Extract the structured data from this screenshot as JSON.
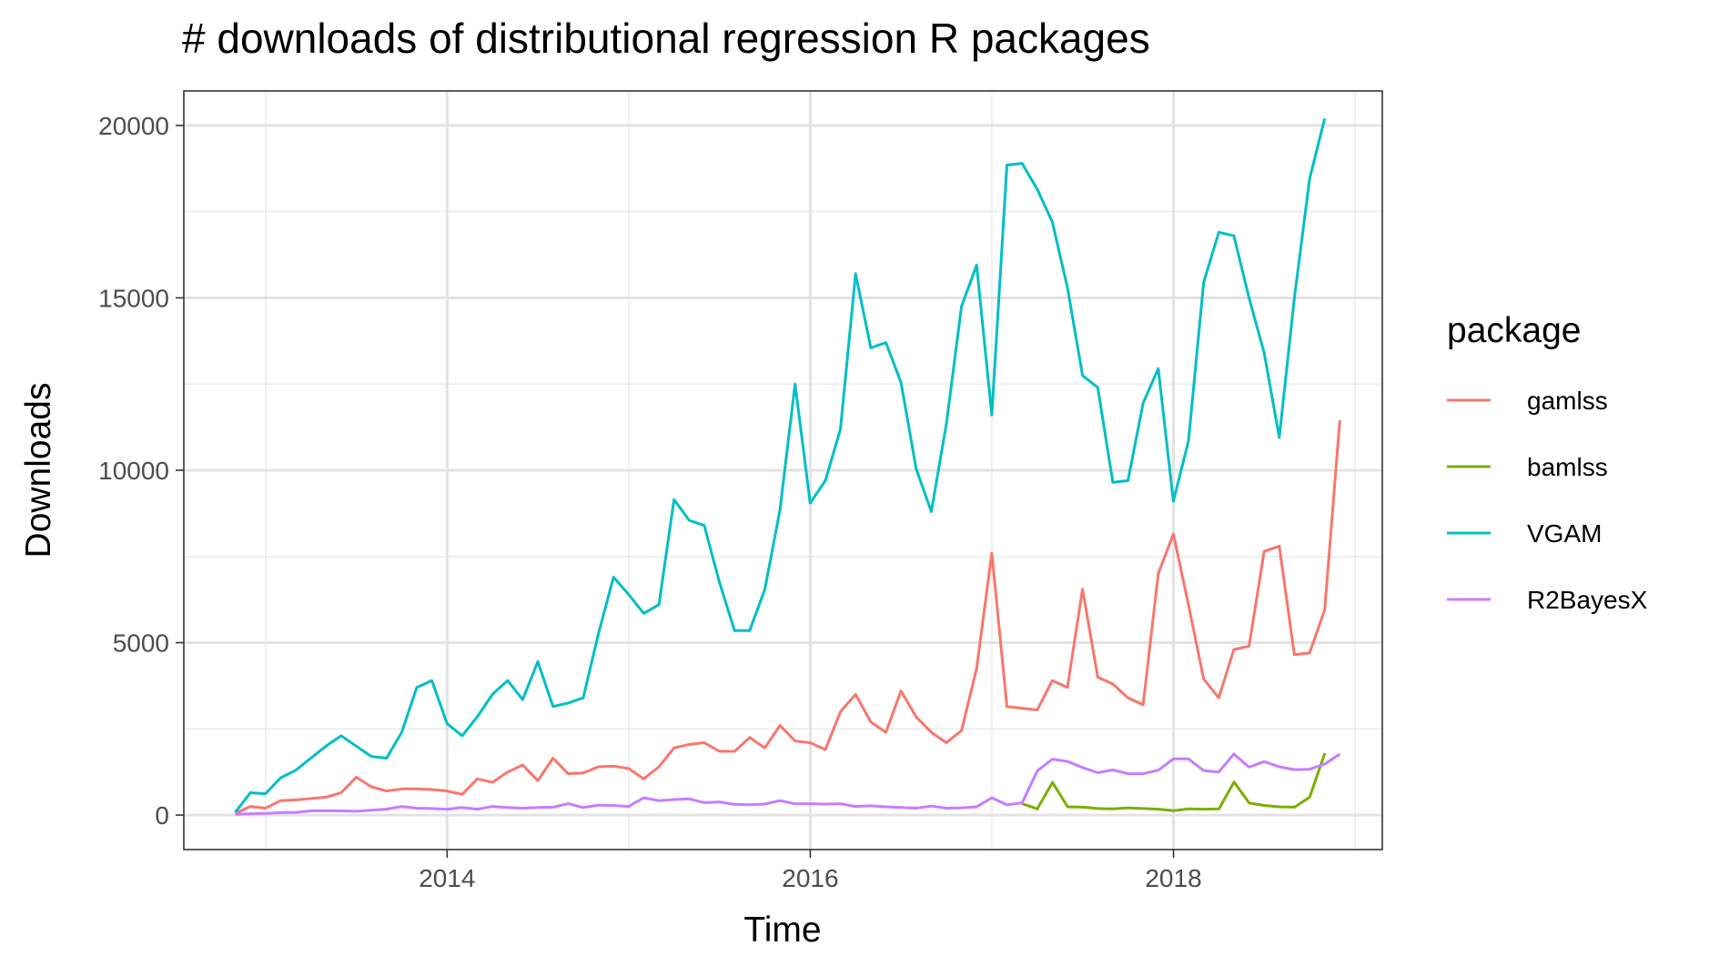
{
  "chart_data": {
    "type": "line",
    "title": "# downloads of distributional regression R packages",
    "xlabel": "Time",
    "ylabel": "Downloads",
    "xlim": [
      2012.55,
      2019.15
    ],
    "ylim": [
      -1000,
      21000
    ],
    "x_ticks": [
      2014,
      2016,
      2018
    ],
    "x_tick_labels": [
      "2014",
      "2016",
      "2018"
    ],
    "x_minor_ticks": [
      2013,
      2015,
      2017,
      2019
    ],
    "y_ticks": [
      0,
      5000,
      10000,
      15000,
      20000
    ],
    "y_tick_labels": [
      "0",
      "5000",
      "10000",
      "15000",
      "20000"
    ],
    "y_minor_ticks": [
      2500,
      7500,
      12500,
      17500
    ],
    "grid": true,
    "legend": {
      "title": "package",
      "position": "right"
    },
    "series": [
      {
        "name": "gamlss",
        "color": "#F8766D",
        "x_start": 2012.833,
        "x_step": 0.08333,
        "values": [
          50,
          250,
          200,
          420,
          440,
          480,
          520,
          650,
          1100,
          820,
          700,
          760,
          760,
          740,
          700,
          600,
          1050,
          950,
          1250,
          1450,
          1000,
          1650,
          1200,
          1220,
          1400,
          1420,
          1350,
          1050,
          1400,
          1950,
          2050,
          2100,
          1850,
          1850,
          2250,
          1950,
          2600,
          2150,
          2100,
          1900,
          3000,
          3500,
          2700,
          2400,
          3600,
          2850,
          2400,
          2100,
          2450,
          4250,
          7600,
          3150,
          3100,
          3050,
          3900,
          3700,
          6550,
          4000,
          3800,
          3400,
          3200,
          7000,
          8150,
          6100,
          3950,
          3400,
          4800,
          4900,
          7650,
          7800,
          4650,
          4700,
          5950,
          11450
        ]
      },
      {
        "name": "bamlss",
        "color": "#7CAE00",
        "x_start": 2017.167,
        "x_step": 0.08333,
        "values": [
          330,
          180,
          950,
          240,
          230,
          190,
          180,
          210,
          190,
          170,
          130,
          180,
          170,
          180,
          960,
          350,
          280,
          240,
          230,
          520,
          1800
        ]
      },
      {
        "name": "VGAM",
        "color": "#00BFC4",
        "x_start": 2012.833,
        "x_step": 0.08333,
        "values": [
          80,
          650,
          620,
          1080,
          1300,
          1650,
          2000,
          2300,
          2000,
          1700,
          1650,
          2400,
          3700,
          3900,
          2650,
          2300,
          2850,
          3500,
          3900,
          3350,
          4450,
          3150,
          3250,
          3400,
          5250,
          6900,
          6400,
          5850,
          6100,
          9150,
          8550,
          8400,
          6750,
          5350,
          5350,
          6550,
          8850,
          12500,
          9050,
          9700,
          11200,
          15700,
          13550,
          13700,
          12550,
          10050,
          8800,
          11350,
          14750,
          15950,
          11600,
          18850,
          18900,
          18150,
          17200,
          15300,
          12750,
          12400,
          9650,
          9700,
          11950,
          12950,
          9100,
          10850,
          15450,
          16900,
          16800,
          15000,
          13400,
          10950,
          15000,
          18450,
          20200
        ]
      },
      {
        "name": "R2BayesX",
        "color": "#C77CFF",
        "x_start": 2012.833,
        "x_step": 0.08333,
        "values": [
          20,
          40,
          50,
          70,
          80,
          120,
          130,
          120,
          110,
          140,
          170,
          250,
          200,
          190,
          170,
          220,
          170,
          250,
          220,
          200,
          220,
          230,
          330,
          220,
          290,
          280,
          250,
          500,
          420,
          450,
          470,
          360,
          380,
          310,
          300,
          320,
          420,
          330,
          330,
          320,
          330,
          250,
          270,
          240,
          220,
          200,
          260,
          200,
          210,
          240,
          500,
          300,
          350,
          1280,
          1620,
          1560,
          1380,
          1230,
          1310,
          1200,
          1200,
          1300,
          1630,
          1630,
          1290,
          1250,
          1770,
          1390,
          1550,
          1400,
          1320,
          1330,
          1480,
          1770
        ]
      }
    ]
  }
}
